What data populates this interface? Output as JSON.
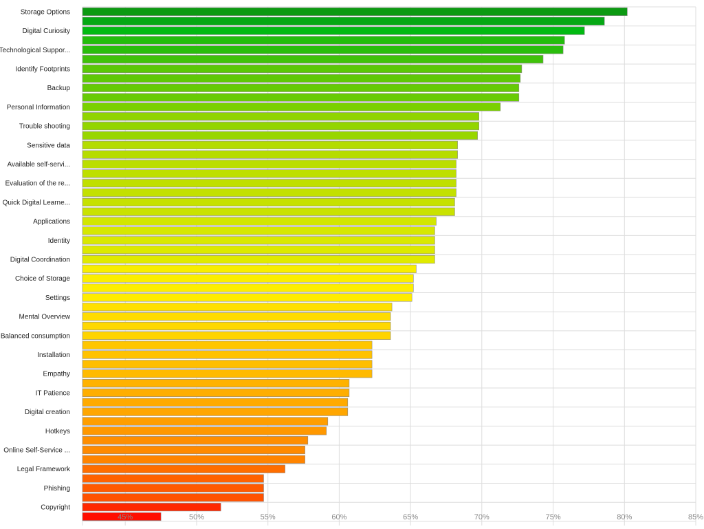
{
  "chart_data": {
    "type": "bar",
    "orientation": "horizontal",
    "grid": true,
    "xlim": [
      42,
      85
    ],
    "x_ticks": [
      45,
      50,
      55,
      60,
      65,
      70,
      75,
      80,
      85
    ],
    "x_tick_labels": [
      "45%",
      "50%",
      "55%",
      "60%",
      "65%",
      "70%",
      "75%",
      "80%",
      "85%"
    ],
    "categories": [
      "Storage Options",
      "",
      "Digital Curiosity",
      "",
      "Technological Suppor...",
      "",
      "Identify Footprints",
      "",
      "Backup",
      "",
      "Personal Information",
      "",
      "Trouble shooting",
      "",
      "Sensitive data",
      "",
      "Available self-servi...",
      "",
      "Evaluation of the re...",
      "",
      "Quick Digital Learne...",
      "",
      "Applications",
      "",
      "Identity",
      "",
      "Digital Coordination",
      "",
      "Choice of Storage",
      "",
      "Settings",
      "",
      "Mental Overview",
      "",
      "Balanced consumption",
      "",
      "Installation",
      "",
      "Empathy",
      "",
      "IT Patience",
      "",
      "Digital creation",
      "",
      "Hotkeys",
      "",
      "Online Self-Service ...",
      "",
      "Legal Framework",
      "",
      "Phishing",
      "",
      "Copyright",
      ""
    ],
    "values": [
      80.2,
      78.6,
      77.2,
      75.8,
      75.7,
      74.3,
      72.8,
      72.7,
      72.6,
      72.6,
      71.3,
      69.8,
      69.8,
      69.7,
      68.3,
      68.3,
      68.2,
      68.2,
      68.2,
      68.2,
      68.1,
      68.1,
      66.8,
      66.7,
      66.7,
      66.7,
      66.7,
      65.4,
      65.2,
      65.2,
      65.1,
      63.7,
      63.6,
      63.6,
      63.6,
      62.3,
      62.3,
      62.3,
      62.3,
      60.7,
      60.7,
      60.6,
      60.6,
      59.2,
      59.1,
      57.8,
      57.6,
      57.6,
      56.2,
      54.7,
      54.7,
      54.7,
      51.7,
      47.5
    ],
    "colors": [
      "#0c9a12",
      "#05a814",
      "#02ba12",
      "#23bd0c",
      "#2abd0c",
      "#40c209",
      "#5bc806",
      "#5fc806",
      "#65ca05",
      "#68cb05",
      "#7ad000",
      "#90d400",
      "#93d500",
      "#98d600",
      "#b4dc00",
      "#b6dc00",
      "#bbde00",
      "#bedf00",
      "#c0df00",
      "#c3e000",
      "#c6e100",
      "#c9e200",
      "#d2e600",
      "#d6e700",
      "#d9e800",
      "#dce900",
      "#e0ea00",
      "#f8ee00",
      "#fbee00",
      "#fdee00",
      "#ffec00",
      "#ffe000",
      "#ffdc00",
      "#ffd800",
      "#ffd400",
      "#ffc600",
      "#ffc200",
      "#ffbe00",
      "#ffba00",
      "#ffb200",
      "#ffae00",
      "#ffaa00",
      "#ffa600",
      "#ff9e00",
      "#ff9800",
      "#ff8e00",
      "#ff8a00",
      "#ff8400",
      "#ff6e00",
      "#ff6200",
      "#ff5a00",
      "#ff5200",
      "#ff2800",
      "#ff0e00"
    ]
  }
}
